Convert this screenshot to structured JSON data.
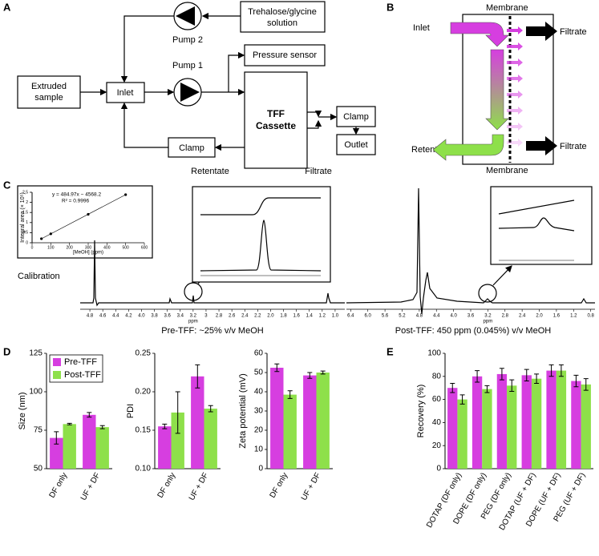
{
  "diagram": {
    "label": "A",
    "pump2": "Pump 2",
    "pump1": "Pump 1",
    "solution": [
      "Trehalose/glycine",
      "solution"
    ],
    "pressure": "Pressure sensor",
    "sample": [
      "Extruded",
      "sample"
    ],
    "inlet": "Inlet",
    "cassette": [
      "TFF",
      "Cassette"
    ],
    "clamp_right": "Clamp",
    "outlet": "Outlet",
    "clamp_bottom": "Clamp",
    "retentate": "Retentate",
    "filtrate": "Filtrate"
  },
  "membrane": {
    "label": "B",
    "top": "Membrane",
    "bottom": "Membrane",
    "inlet": "Inlet",
    "filtrate_top": "Filtrate",
    "filtrate_bottom": "Filtrate",
    "retentate": "Retentate"
  },
  "nmr": {
    "label": "C",
    "calibration_label": "Calibration",
    "left": {
      "xlim": [
        4.95,
        0.85
      ],
      "xticks": [
        4.8,
        4.6,
        4.4,
        4.2,
        {
          "value": 4,
          "label": "4.0"
        },
        3.8,
        3.6,
        3.4,
        3.2,
        3,
        2.8,
        2.6,
        2.4,
        2.2,
        {
          "value": 2,
          "label": "2.0"
        },
        1.8,
        1.6,
        1.4,
        1.2,
        {
          "value": 1,
          "label": "1.0"
        }
      ],
      "xlabel": "ppm",
      "caption": "Pre-TFF: ~25% v/v MeOH"
    },
    "right": {
      "xlim": [
        6.5,
        0.7
      ],
      "xticks": [
        6.4,
        {
          "value": 6,
          "label": "6.0"
        },
        5.6,
        5.2,
        4.8,
        4.4,
        {
          "value": 4,
          "label": "4.0"
        },
        3.6,
        3.2,
        2.8,
        2.4,
        {
          "value": 2,
          "label": "2.0"
        },
        1.6,
        1.2,
        0.8
      ],
      "xlabel": "ppm",
      "caption": "Post-TFF: 450 ppm (0.045%) v/v MeOH"
    }
  },
  "panel_d": "D",
  "panel_e": "E",
  "chart_data": [
    {
      "type": "scatter",
      "x": [
        50,
        100,
        300,
        500
      ],
      "y": [
        0.2,
        0.44,
        1.41,
        2.38
      ],
      "color": "#000000",
      "xlim": [
        0,
        600
      ],
      "xticks": [
        0,
        100,
        200,
        300,
        400,
        500,
        600
      ],
      "ylim": [
        0,
        2.5
      ],
      "yticks": [
        0,
        0.5,
        1,
        1.5,
        2,
        2.5
      ],
      "xlabel": "[MeOH] (ppm)",
      "ylabel": "Integral area (× 10⁵)",
      "annotations": [
        "y = 484.97x − 4568.2",
        "R² = 0.9996"
      ]
    },
    {
      "type": "bar",
      "categories": [
        "DF only",
        "UF + DF"
      ],
      "ylabel": "Size (nm)",
      "ylim": [
        50,
        125
      ],
      "yticks": [
        50,
        75,
        100,
        125
      ],
      "series": [
        {
          "name": "Pre-TFF",
          "color": "#d63ee0",
          "values": [
            70,
            85
          ],
          "errors": [
            4,
            1.5
          ]
        },
        {
          "name": "Post-TFF",
          "color": "#8ee04a",
          "values": [
            79,
            77
          ],
          "errors": [
            0.5,
            1
          ]
        }
      ]
    },
    {
      "type": "bar",
      "categories": [
        "DF only",
        "UF + DF"
      ],
      "ylabel": "PDI",
      "ylim": [
        0.1,
        0.25
      ],
      "yticks": [
        {
          "value": 0.1,
          "label": "0.10"
        },
        0.15,
        {
          "value": 0.2,
          "label": "0.20"
        },
        0.25
      ],
      "series": [
        {
          "color": "#d63ee0",
          "values": [
            0.155,
            0.22
          ],
          "errors": [
            0.003,
            0.015
          ]
        },
        {
          "color": "#8ee04a",
          "values": [
            0.173,
            0.178
          ],
          "errors": [
            0.027,
            0.004
          ]
        }
      ]
    },
    {
      "type": "bar",
      "categories": [
        "DF only",
        "UF + DF"
      ],
      "ylabel": "Zeta potential (mV)",
      "ylim": [
        0,
        60
      ],
      "yticks": [
        0,
        10,
        20,
        30,
        40,
        50,
        60
      ],
      "series": [
        {
          "color": "#d63ee0",
          "values": [
            52.5,
            48.5
          ],
          "errors": [
            2,
            1.5
          ]
        },
        {
          "color": "#8ee04a",
          "values": [
            38.5,
            50
          ],
          "errors": [
            2,
            0.8
          ]
        }
      ]
    },
    {
      "type": "bar",
      "categories": [
        "DOTAP (DF only)",
        "DOPE (DF only)",
        "PEG (DF only)",
        "DOTAP (UF + DF)",
        "DOPE (UF + DF)",
        "PEG (UF + DF)"
      ],
      "ylabel": "Recovery (%)",
      "ylim": [
        0,
        100
      ],
      "yticks": [
        0,
        20,
        40,
        60,
        80,
        100
      ],
      "series": [
        {
          "color": "#d63ee0",
          "values": [
            70,
            80,
            82,
            81,
            85,
            76
          ],
          "errors": [
            4,
            5,
            5,
            5,
            5,
            5
          ]
        },
        {
          "color": "#8ee04a",
          "values": [
            60,
            69,
            72,
            78,
            85,
            73
          ],
          "errors": [
            4,
            3,
            5,
            4,
            5,
            5
          ]
        }
      ]
    }
  ]
}
